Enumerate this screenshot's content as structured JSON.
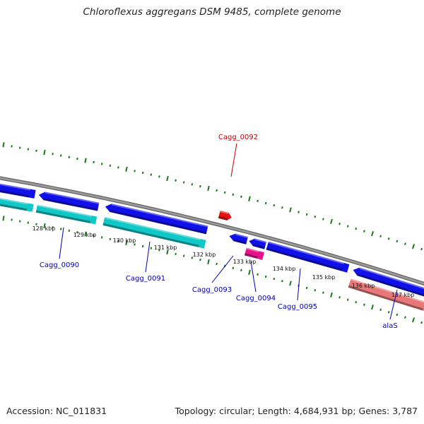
{
  "title": "Chloroflexus aggregans DSM 9485, complete genome",
  "footer": {
    "accession": "Accession: NC_011831",
    "summary": "Topology: circular; Length: 4,684,931 bp; Genes: 3,787"
  },
  "colors": {
    "forward_cds": "#1010e8",
    "reverse_cds": "#10c8c8",
    "highlight": "#e81010",
    "magenta_cds": "#e8108c",
    "rna": "#e87878",
    "backbone": "#888888",
    "ticks": "#1a7a1a",
    "label_blue": "#0000b4",
    "label_red": "#c80000"
  },
  "kbp_labels": [
    "128 kbp",
    "129 kbp",
    "130 kbp",
    "131 kbp",
    "132 kbp",
    "133 kbp",
    "134 kbp",
    "135 kbp",
    "136 kbp",
    "137 kbp"
  ],
  "gene_labels": [
    {
      "id": "Cagg_0090",
      "color": "blue"
    },
    {
      "id": "Cagg_0091",
      "color": "blue"
    },
    {
      "id": "Cagg_0092",
      "color": "red"
    },
    {
      "id": "Cagg_0093",
      "color": "blue"
    },
    {
      "id": "Cagg_0094",
      "color": "blue"
    },
    {
      "id": "Cagg_0095",
      "color": "blue"
    },
    {
      "id": "alaS",
      "color": "blue"
    }
  ]
}
